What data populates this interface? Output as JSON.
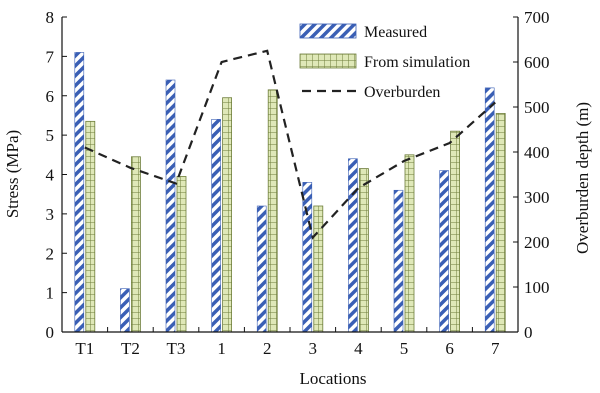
{
  "chart_data": {
    "type": "bar",
    "categories": [
      "T1",
      "T2",
      "T3",
      "1",
      "2",
      "3",
      "4",
      "5",
      "6",
      "7"
    ],
    "series": [
      {
        "name": "Measured",
        "axis": "left",
        "kind": "bar",
        "pattern": "diagonal-blue-stripes",
        "values": [
          7.1,
          1.1,
          6.4,
          5.4,
          3.2,
          3.8,
          4.4,
          3.6,
          4.1,
          6.2
        ]
      },
      {
        "name": "From simulation",
        "axis": "left",
        "kind": "bar",
        "pattern": "green-grid",
        "values": [
          5.35,
          4.45,
          3.95,
          5.95,
          6.15,
          3.2,
          4.15,
          4.5,
          5.1,
          5.55
        ]
      },
      {
        "name": "Overburden",
        "axis": "right",
        "kind": "dashed-line",
        "values": [
          410,
          365,
          330,
          600,
          625,
          210,
          320,
          380,
          420,
          510
        ]
      }
    ],
    "xlabel": "Locations",
    "ylabel": "Stress (MPa)",
    "y2label": "Overburden depth (m)",
    "ylim": [
      0,
      8
    ],
    "y2lim": [
      0,
      700
    ],
    "yticks": [
      "0",
      "1",
      "2",
      "3",
      "4",
      "5",
      "6",
      "7",
      "8"
    ],
    "y2ticks": [
      "0",
      "100",
      "200",
      "300",
      "400",
      "500",
      "600",
      "700"
    ],
    "legend_position": "top-right",
    "grid": false
  },
  "colors": {
    "measured_stripe": "#3a5fb5",
    "simulation_fill": "#dfe8b8",
    "simulation_line": "#6d7d3a",
    "line": "#222222",
    "axis": "#111111"
  }
}
